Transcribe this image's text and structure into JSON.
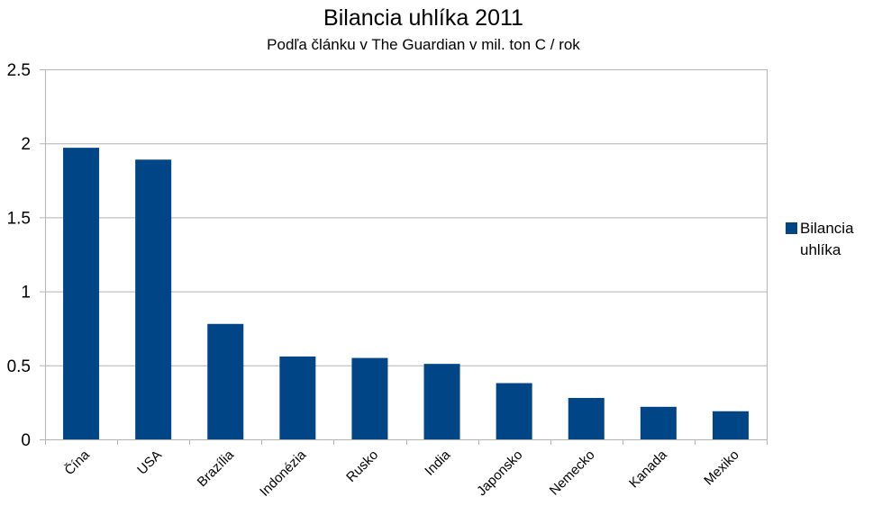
{
  "chart_data": {
    "type": "bar",
    "title": "Bilancia uhlíka 2011",
    "subtitle": "Podľa článku v The Guardian v mil. ton C / rok",
    "xlabel": "",
    "ylabel": "",
    "categories": [
      "Čína",
      "USA",
      "Brazília",
      "Indonézia",
      "Rusko",
      "India",
      "Japonsko",
      "Nemecko",
      "Kanada",
      "Mexiko"
    ],
    "series": [
      {
        "name": "Bilancia uhlíka",
        "values": [
          1.97,
          1.89,
          0.78,
          0.56,
          0.55,
          0.51,
          0.38,
          0.28,
          0.22,
          0.19
        ]
      }
    ],
    "ylim": [
      0,
      2.5
    ],
    "yticks": [
      "0",
      "0.5",
      "1",
      "1.5",
      "2",
      "2.5"
    ],
    "grid": true,
    "legend_position": "right",
    "colors": {
      "bar": "#004586",
      "grid": "#b3b3b3",
      "axis": "#b3b3b3"
    }
  }
}
